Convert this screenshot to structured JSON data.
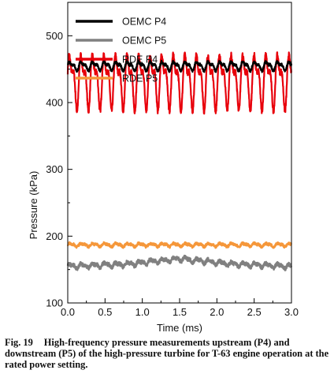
{
  "chart_data": {
    "type": "line",
    "xlabel": "Time (ms)",
    "ylabel": "Pressure (kPa)",
    "xlim": [
      0.0,
      3.0
    ],
    "ylim": [
      100,
      550
    ],
    "xticks": [
      "0.0",
      "0.5",
      "1.0",
      "1.5",
      "2.0",
      "2.5",
      "3.0"
    ],
    "yticks": [
      "100",
      "200",
      "300",
      "400",
      "500"
    ],
    "legend_position": "top",
    "grid": false,
    "series": [
      {
        "name": "OEMC P4",
        "color": "#000000",
        "mean": 455,
        "amplitude": 8,
        "cycle_ms": 0.155,
        "noise": 2,
        "profile_x": [
          0.0,
          3.0
        ],
        "profile_y": [
          455,
          455
        ]
      },
      {
        "name": "OEMC P5",
        "color": "#808080",
        "mean": 157,
        "amplitude": 4,
        "cycle_ms": 0.155,
        "noise": 3,
        "profile_x": [
          0.0,
          0.8,
          1.2,
          1.5,
          1.8,
          2.2,
          3.0
        ],
        "profile_y": [
          155,
          158,
          163,
          166,
          163,
          158,
          155
        ]
      },
      {
        "name": "RDE P4",
        "color": "#e8000b",
        "mean": 435,
        "amplitude": 50,
        "cycle_ms": 0.155,
        "noise": 4,
        "profile_x": [
          0.0,
          3.0
        ],
        "profile_y": [
          435,
          435
        ]
      },
      {
        "name": "RDE P5",
        "color": "#f5973a",
        "mean": 187,
        "amplitude": 3,
        "cycle_ms": 0.155,
        "noise": 2,
        "profile_x": [
          0.0,
          3.0
        ],
        "profile_y": [
          187,
          187
        ]
      }
    ]
  },
  "caption": {
    "label": "Fig. 19",
    "text": "High-frequency pressure measurements upstream (P4) and downstream (P5) of the high-pressure turbine for T-63 engine operation at the rated power setting."
  }
}
